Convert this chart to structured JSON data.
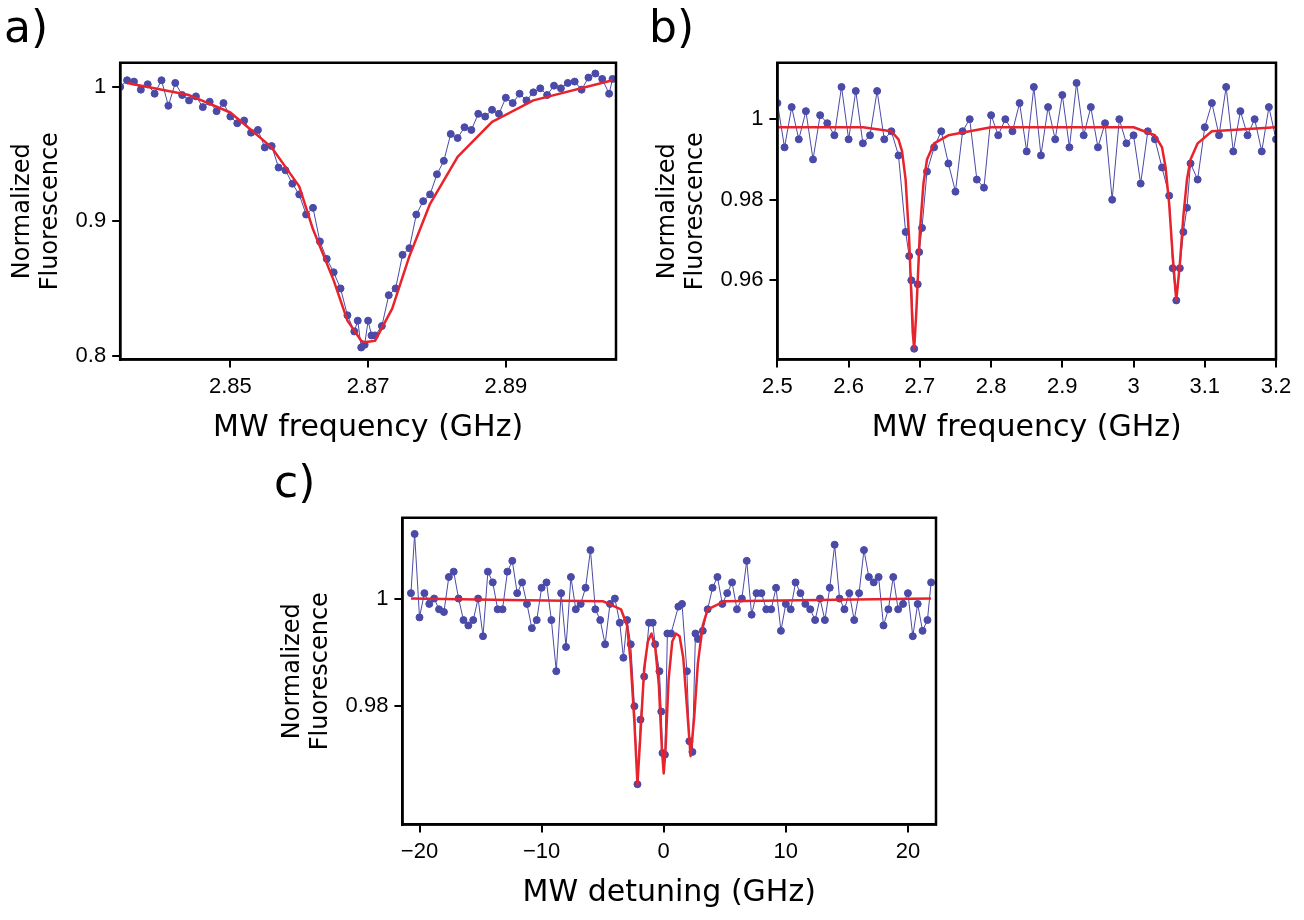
{
  "chart_data": [
    {
      "type": "line",
      "title": "a)",
      "xlabel": "MW frequency (GHz)",
      "ylabel": "Normalized Fluorescence",
      "xlim": [
        2.834,
        2.906
      ],
      "ylim": [
        0.797,
        1.018
      ],
      "xticks": [
        2.85,
        2.87,
        2.89
      ],
      "yticks": [
        0.8,
        0.9,
        1
      ],
      "grid": false,
      "legend": false,
      "series": [
        {
          "color": "#4a4aa8",
          "marker": "circle",
          "x": [
            2.834,
            2.835,
            2.836,
            2.837,
            2.838,
            2.839,
            2.84,
            2.841,
            2.842,
            2.843,
            2.844,
            2.845,
            2.846,
            2.847,
            2.848,
            2.849,
            2.85,
            2.851,
            2.852,
            2.853,
            2.854,
            2.855,
            2.856,
            2.857,
            2.858,
            2.859,
            2.86,
            2.861,
            2.862,
            2.863,
            2.864,
            2.865,
            2.866,
            2.867,
            2.868,
            2.8685,
            2.869,
            2.8695,
            2.87,
            2.8705,
            2.871,
            2.872,
            2.873,
            2.874,
            2.875,
            2.876,
            2.877,
            2.878,
            2.879,
            2.88,
            2.881,
            2.882,
            2.883,
            2.884,
            2.885,
            2.886,
            2.887,
            2.888,
            2.889,
            2.89,
            2.891,
            2.892,
            2.893,
            2.894,
            2.895,
            2.896,
            2.897,
            2.898,
            2.899,
            2.9,
            2.901,
            2.902,
            2.903,
            2.904,
            2.905,
            2.9055
          ],
          "values": [
            1.0,
            1.005,
            1.004,
            0.998,
            1.002,
            0.995,
            1.005,
            0.986,
            1.003,
            0.994,
            0.99,
            0.993,
            0.985,
            0.989,
            0.982,
            0.988,
            0.978,
            0.973,
            0.975,
            0.966,
            0.968,
            0.955,
            0.956,
            0.94,
            0.938,
            0.928,
            0.92,
            0.905,
            0.91,
            0.885,
            0.872,
            0.862,
            0.85,
            0.83,
            0.818,
            0.826,
            0.806,
            0.808,
            0.826,
            0.815,
            0.815,
            0.822,
            0.845,
            0.85,
            0.875,
            0.88,
            0.905,
            0.915,
            0.92,
            0.935,
            0.945,
            0.965,
            0.962,
            0.97,
            0.968,
            0.98,
            0.978,
            0.983,
            0.98,
            0.992,
            0.988,
            0.995,
            0.99,
            0.996,
            0.999,
            0.994,
            1.001,
            0.999,
            1.003,
            1.004,
            0.998,
            1.007,
            1.01,
            1.006,
            0.995,
            1.006
          ]
        },
        {
          "color": "#e8232b",
          "marker": "none",
          "x": [
            2.835,
            2.844,
            2.85,
            2.856,
            2.86,
            2.862,
            2.865,
            2.867,
            2.869,
            2.8695,
            2.871,
            2.8735,
            2.876,
            2.879,
            2.883,
            2.888,
            2.894,
            2.9055
          ],
          "values": [
            1.003,
            0.994,
            0.981,
            0.955,
            0.926,
            0.894,
            0.856,
            0.826,
            0.811,
            0.81,
            0.811,
            0.835,
            0.874,
            0.913,
            0.948,
            0.974,
            0.99,
            1.005
          ]
        }
      ]
    },
    {
      "type": "line",
      "title": "b)",
      "xlabel": "MW frequency (GHz)",
      "ylabel": "Normalized Fluorescence",
      "xlim": [
        2.5,
        3.2
      ],
      "ylim": [
        0.9403,
        1.014
      ],
      "xticks": [
        2.5,
        2.6,
        2.7,
        2.8,
        2.9,
        3,
        3.1,
        3.2
      ],
      "yticks": [
        0.96,
        0.98,
        1
      ],
      "grid": false,
      "legend": false,
      "series": [
        {
          "color": "#4a4aa8",
          "marker": "circle",
          "x": [
            2.5,
            2.51,
            2.52,
            2.53,
            2.54,
            2.55,
            2.56,
            2.57,
            2.58,
            2.59,
            2.6,
            2.61,
            2.62,
            2.63,
            2.64,
            2.65,
            2.66,
            2.67,
            2.68,
            2.685,
            2.688,
            2.692,
            2.697,
            2.699,
            2.703,
            2.71,
            2.72,
            2.73,
            2.74,
            2.75,
            2.76,
            2.77,
            2.78,
            2.79,
            2.8,
            2.81,
            2.82,
            2.83,
            2.84,
            2.85,
            2.86,
            2.87,
            2.88,
            2.89,
            2.9,
            2.91,
            2.92,
            2.93,
            2.94,
            2.95,
            2.96,
            2.97,
            2.98,
            2.99,
            3.0,
            3.01,
            3.02,
            3.03,
            3.04,
            3.05,
            3.055,
            3.06,
            3.065,
            3.07,
            3.075,
            3.08,
            3.09,
            3.1,
            3.11,
            3.12,
            3.13,
            3.14,
            3.15,
            3.16,
            3.17,
            3.18,
            3.19,
            3.2
          ],
          "values": [
            1.004,
            0.993,
            1.003,
            0.995,
            1.002,
            0.99,
            1.001,
            0.999,
            0.996,
            1.008,
            0.995,
            1.007,
            0.994,
            0.996,
            1.007,
            0.995,
            0.997,
            0.991,
            0.972,
            0.966,
            0.96,
            0.943,
            0.959,
            0.967,
            0.973,
            0.987,
            0.993,
            0.997,
            0.989,
            0.982,
            0.997,
            1.0,
            0.985,
            0.983,
            1.001,
            0.996,
            1.0,
            0.997,
            1.004,
            0.992,
            1.008,
            0.991,
            1.003,
            0.995,
            1.006,
            0.993,
            1.009,
            0.996,
            1.003,
            0.993,
            0.999,
            0.98,
            1.0,
            0.994,
            0.996,
            0.984,
            0.997,
            0.995,
            0.988,
            0.981,
            0.963,
            0.955,
            0.963,
            0.972,
            0.978,
            0.989,
            0.985,
            0.998,
            1.004,
            0.996,
            1.008,
            0.992,
            1.002,
            0.996,
            1.0,
            0.992,
            1.003,
            0.995
          ]
        },
        {
          "color": "#e8232b",
          "marker": "none",
          "x": [
            2.5,
            2.62,
            2.66,
            2.67,
            2.675,
            2.68,
            2.685,
            2.69,
            2.692,
            2.695,
            2.7,
            2.705,
            2.71,
            2.72,
            2.74,
            2.8,
            3.0,
            3.03,
            3.04,
            3.045,
            3.05,
            3.055,
            3.06,
            3.065,
            3.07,
            3.075,
            3.08,
            3.09,
            3.11,
            3.2
          ],
          "values": [
            0.998,
            0.998,
            0.997,
            0.995,
            0.992,
            0.985,
            0.97,
            0.947,
            0.943,
            0.952,
            0.972,
            0.984,
            0.99,
            0.994,
            0.996,
            0.998,
            0.998,
            0.996,
            0.993,
            0.988,
            0.979,
            0.966,
            0.955,
            0.964,
            0.976,
            0.985,
            0.99,
            0.994,
            0.997,
            0.998
          ]
        }
      ]
    },
    {
      "type": "line",
      "title": "c)",
      "xlabel": "MW detuning (GHz)",
      "ylabel": "Normalized Fluorescence",
      "xlim": [
        -21.4,
        22.3
      ],
      "ylim": [
        0.958,
        1.015
      ],
      "xticks": [
        {
          "value": -20,
          "label": "−20"
        },
        {
          "value": -10,
          "label": "−10"
        },
        0,
        10,
        20
      ],
      "yticks": [
        0.98,
        1
      ],
      "grid": false,
      "legend": false,
      "series": [
        {
          "color": "#4a4aa8",
          "marker": "circle",
          "x": [
            -20.7,
            -20.4,
            -20.0,
            -19.6,
            -19.2,
            -18.8,
            -18.4,
            -18.0,
            -17.6,
            -17.2,
            -16.8,
            -16.4,
            -16.0,
            -15.6,
            -15.2,
            -14.8,
            -14.4,
            -14.0,
            -13.6,
            -13.2,
            -12.8,
            -12.4,
            -12.0,
            -11.6,
            -11.2,
            -10.8,
            -10.4,
            -10.0,
            -9.6,
            -9.2,
            -8.8,
            -8.4,
            -8.0,
            -7.6,
            -7.2,
            -6.8,
            -6.4,
            -6.0,
            -5.6,
            -5.2,
            -4.8,
            -4.4,
            -4.0,
            -3.6,
            -3.3,
            -3.0,
            -2.7,
            -2.4,
            -2.15,
            -1.9,
            -1.6,
            -1.2,
            -0.9,
            -0.7,
            -0.35,
            -0.2,
            -0.1,
            0.1,
            0.3,
            0.6,
            1.2,
            1.5,
            1.9,
            2.1,
            2.35,
            2.6,
            2.8,
            3.2,
            3.6,
            4.0,
            4.4,
            4.8,
            5.2,
            5.6,
            6.0,
            6.4,
            6.8,
            7.2,
            7.6,
            8.0,
            8.4,
            8.8,
            9.2,
            9.6,
            10.0,
            10.4,
            10.8,
            11.2,
            11.6,
            12.0,
            12.4,
            12.8,
            13.2,
            13.6,
            14.0,
            14.4,
            14.8,
            15.2,
            15.6,
            16.0,
            16.4,
            16.8,
            17.2,
            17.6,
            18.0,
            18.4,
            18.8,
            19.2,
            19.6,
            20.0,
            20.4,
            20.8,
            21.2,
            21.6,
            21.9
          ],
          "values": [
            1.001,
            1.012,
            0.9965,
            1.001,
            0.999,
            1.0,
            0.998,
            0.9975,
            1.004,
            1.005,
            1.0,
            0.996,
            0.995,
            0.996,
            1.0,
            0.993,
            1.005,
            1.003,
            0.998,
            0.998,
            1.005,
            1.007,
            1.001,
            1.003,
            0.999,
            0.9945,
            0.996,
            1.002,
            1.003,
            0.996,
            0.9865,
            1.001,
            0.991,
            1.004,
            0.998,
            0.999,
            1.002,
            1.009,
            0.998,
            0.996,
            0.9915,
            0.999,
            1.0,
            0.9955,
            0.989,
            0.996,
            0.9915,
            0.98,
            0.9655,
            0.9775,
            0.9855,
            0.9955,
            0.9955,
            0.9915,
            0.9865,
            0.979,
            0.9713,
            0.971,
            0.9935,
            0.9935,
            0.9985,
            0.999,
            0.9865,
            0.9735,
            0.9715,
            0.9935,
            0.9925,
            0.994,
            0.998,
            1.002,
            1.004,
            0.999,
            1.001,
            1.003,
            0.998,
            1.0,
            1.007,
            0.997,
            1.001,
            1.001,
            0.998,
            0.998,
            1.002,
            0.994,
            0.999,
            0.998,
            1.003,
            1.001,
            0.999,
            0.998,
            0.996,
            1.0,
            0.996,
            1.002,
            1.01,
            1.0,
            0.998,
            1.001,
            0.996,
            1.001,
            1.009,
            1.004,
            1.003,
            1.004,
            0.995,
            0.998,
            1.004,
            0.998,
            0.999,
            1.001,
            0.993,
            0.999,
            0.994,
            0.996,
            1.003
          ]
        },
        {
          "color": "#e8232b",
          "marker": "none",
          "x": [
            -20.7,
            -5,
            -3.5,
            -3.0,
            -2.7,
            -2.4,
            -2.15,
            -1.9,
            -1.6,
            -1.3,
            -1.0,
            -0.7,
            -0.4,
            -0.15,
            0,
            0.15,
            0.4,
            0.7,
            1.0,
            1.3,
            1.6,
            1.9,
            2.2,
            2.5,
            2.8,
            3.2,
            3.6,
            5,
            21.9
          ],
          "values": [
            1.0,
            0.9995,
            0.998,
            0.995,
            0.988,
            0.977,
            0.9655,
            0.975,
            0.987,
            0.992,
            0.9935,
            0.991,
            0.984,
            0.972,
            0.9675,
            0.972,
            0.985,
            0.992,
            0.9935,
            0.993,
            0.989,
            0.98,
            0.9707,
            0.978,
            0.988,
            0.995,
            0.998,
            0.9995,
            1.0
          ]
        }
      ]
    }
  ]
}
